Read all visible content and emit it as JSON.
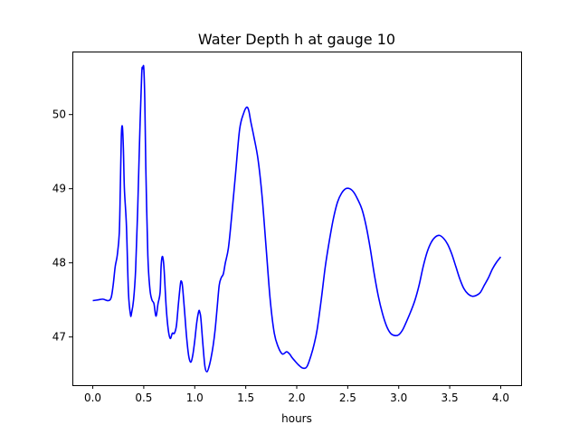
{
  "chart_data": {
    "type": "line",
    "title": "Water Depth h at gauge 10",
    "xlabel": "hours",
    "ylabel": "",
    "xlim": [
      -0.2,
      4.2
    ],
    "ylim": [
      46.35,
      50.85
    ],
    "xticks": [
      0.0,
      0.5,
      1.0,
      1.5,
      2.0,
      2.5,
      3.0,
      3.5,
      4.0
    ],
    "xtick_labels": [
      "0.0",
      "0.5",
      "1.0",
      "1.5",
      "2.0",
      "2.5",
      "3.0",
      "3.5",
      "4.0"
    ],
    "yticks": [
      47,
      48,
      49,
      50
    ],
    "ytick_labels": [
      "47",
      "48",
      "49",
      "50"
    ],
    "grid": false,
    "series": [
      {
        "color": "#0000ff",
        "x": [
          0.0,
          0.05,
          0.1,
          0.15,
          0.18,
          0.2,
          0.22,
          0.24,
          0.26,
          0.27,
          0.28,
          0.29,
          0.3,
          0.31,
          0.33,
          0.35,
          0.37,
          0.38,
          0.4,
          0.42,
          0.44,
          0.46,
          0.48,
          0.49,
          0.5,
          0.51,
          0.52,
          0.54,
          0.56,
          0.58,
          0.6,
          0.62,
          0.64,
          0.66,
          0.67,
          0.68,
          0.69,
          0.7,
          0.72,
          0.74,
          0.76,
          0.78,
          0.8,
          0.82,
          0.84,
          0.86,
          0.87,
          0.88,
          0.9,
          0.92,
          0.94,
          0.96,
          0.98,
          1.0,
          1.02,
          1.04,
          1.05,
          1.06,
          1.08,
          1.1,
          1.12,
          1.14,
          1.16,
          1.18,
          1.2,
          1.22,
          1.24,
          1.26,
          1.28,
          1.3,
          1.33,
          1.36,
          1.4,
          1.44,
          1.48,
          1.51,
          1.53,
          1.55,
          1.58,
          1.62,
          1.66,
          1.7,
          1.74,
          1.78,
          1.82,
          1.86,
          1.9,
          1.93,
          1.95,
          1.98,
          2.02,
          2.06,
          2.1,
          2.14,
          2.17,
          2.2,
          2.24,
          2.28,
          2.32,
          2.36,
          2.4,
          2.44,
          2.48,
          2.52,
          2.56,
          2.6,
          2.64,
          2.68,
          2.72,
          2.76,
          2.8,
          2.84,
          2.88,
          2.92,
          2.96,
          3.0,
          3.04,
          3.08,
          3.12,
          3.16,
          3.2,
          3.24,
          3.28,
          3.32,
          3.36,
          3.4,
          3.44,
          3.48,
          3.52,
          3.56,
          3.6,
          3.64,
          3.68,
          3.72,
          3.76,
          3.8,
          3.84,
          3.88,
          3.92,
          3.96,
          4.0
        ],
        "y": [
          47.49,
          47.5,
          47.51,
          47.49,
          47.53,
          47.7,
          47.95,
          48.1,
          48.4,
          49.0,
          49.7,
          49.84,
          49.55,
          49.0,
          48.5,
          47.6,
          47.3,
          47.32,
          47.5,
          47.9,
          48.7,
          49.7,
          50.55,
          50.62,
          50.63,
          50.2,
          49.3,
          48.1,
          47.65,
          47.5,
          47.45,
          47.28,
          47.45,
          47.6,
          47.95,
          48.08,
          48.05,
          47.9,
          47.4,
          47.1,
          46.98,
          47.05,
          47.05,
          47.15,
          47.45,
          47.72,
          47.75,
          47.68,
          47.35,
          47.0,
          46.75,
          46.66,
          46.75,
          46.95,
          47.2,
          47.35,
          47.33,
          47.25,
          46.9,
          46.6,
          46.53,
          46.6,
          46.72,
          46.88,
          47.1,
          47.4,
          47.7,
          47.8,
          47.85,
          48.0,
          48.2,
          48.6,
          49.2,
          49.8,
          50.02,
          50.1,
          50.05,
          49.9,
          49.7,
          49.4,
          48.9,
          48.2,
          47.5,
          47.05,
          46.86,
          46.77,
          46.8,
          46.77,
          46.73,
          46.68,
          46.62,
          46.58,
          46.6,
          46.75,
          46.9,
          47.1,
          47.5,
          47.95,
          48.3,
          48.6,
          48.82,
          48.94,
          49.0,
          49.0,
          48.95,
          48.85,
          48.72,
          48.5,
          48.2,
          47.85,
          47.55,
          47.32,
          47.15,
          47.05,
          47.02,
          47.03,
          47.1,
          47.22,
          47.35,
          47.5,
          47.7,
          47.95,
          48.15,
          48.28,
          48.35,
          48.37,
          48.33,
          48.25,
          48.12,
          47.95,
          47.78,
          47.65,
          47.58,
          47.55,
          47.56,
          47.6,
          47.7,
          47.8,
          47.92,
          48.01,
          48.08
        ]
      }
    ]
  }
}
